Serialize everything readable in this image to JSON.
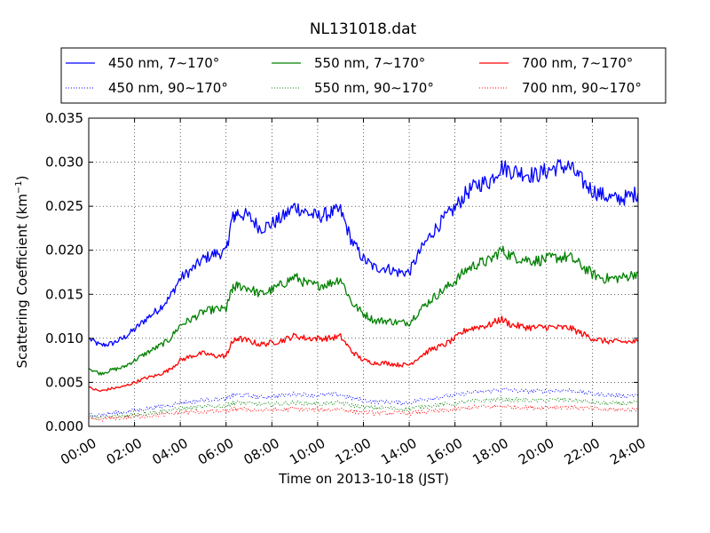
{
  "chart_data": {
    "type": "line",
    "title": "NL131018.dat",
    "xlabel": "Time on 2013-10-18 (JST)",
    "ylabel": "Scattering Coefficient (km",
    "ylabel_sup": "−1",
    "ylabel_end": ")",
    "xlim_hours": [
      0,
      24
    ],
    "ylim": [
      0,
      0.035
    ],
    "x_ticks": [
      "00:00",
      "02:00",
      "04:00",
      "06:00",
      "08:00",
      "10:00",
      "12:00",
      "14:00",
      "16:00",
      "18:00",
      "20:00",
      "22:00",
      "24:00"
    ],
    "y_ticks": [
      "0.000",
      "0.005",
      "0.010",
      "0.015",
      "0.020",
      "0.025",
      "0.030",
      "0.035"
    ],
    "grid": true,
    "legend_position": "top",
    "x_hours": [
      0,
      0.5,
      1,
      1.5,
      2,
      2.5,
      3,
      3.5,
      4,
      4.5,
      5,
      5.5,
      6,
      6.25,
      6.5,
      7,
      7.5,
      8,
      8.5,
      9,
      9.5,
      10,
      10.5,
      11,
      11.5,
      12,
      12.5,
      13,
      13.5,
      14,
      14.5,
      15,
      15.5,
      16,
      16.5,
      17,
      17.5,
      18,
      18.5,
      19,
      19.5,
      20,
      20.5,
      21,
      21.5,
      22,
      22.5,
      23,
      23.5,
      24
    ],
    "series": [
      {
        "name": "450 nm, 7∼170°",
        "color": "#0000ff",
        "style": "solid",
        "values": [
          0.01,
          0.0092,
          0.0094,
          0.01,
          0.011,
          0.0122,
          0.0132,
          0.0145,
          0.0168,
          0.0178,
          0.019,
          0.0196,
          0.0198,
          0.0235,
          0.0243,
          0.0238,
          0.0225,
          0.023,
          0.0238,
          0.025,
          0.0243,
          0.0238,
          0.0242,
          0.0245,
          0.021,
          0.019,
          0.018,
          0.018,
          0.0175,
          0.0175,
          0.02,
          0.022,
          0.0235,
          0.0248,
          0.0265,
          0.0275,
          0.0278,
          0.0295,
          0.029,
          0.0288,
          0.0285,
          0.029,
          0.0295,
          0.0295,
          0.028,
          0.0268,
          0.0262,
          0.0258,
          0.026,
          0.0265
        ]
      },
      {
        "name": "550 nm, 7∼170°",
        "color": "#008000",
        "style": "solid",
        "values": [
          0.0066,
          0.006,
          0.0064,
          0.0067,
          0.0075,
          0.0083,
          0.009,
          0.0098,
          0.0115,
          0.0122,
          0.013,
          0.0133,
          0.0133,
          0.0155,
          0.016,
          0.0157,
          0.015,
          0.0155,
          0.0162,
          0.017,
          0.0162,
          0.016,
          0.0162,
          0.0168,
          0.014,
          0.0128,
          0.012,
          0.012,
          0.0118,
          0.0118,
          0.0133,
          0.0145,
          0.0155,
          0.0165,
          0.0178,
          0.0185,
          0.0188,
          0.02,
          0.0193,
          0.019,
          0.0188,
          0.019,
          0.0192,
          0.0192,
          0.0183,
          0.0173,
          0.0168,
          0.0168,
          0.017,
          0.0175
        ]
      },
      {
        "name": "700 nm, 7∼170°",
        "color": "#ff0000",
        "style": "solid",
        "values": [
          0.0044,
          0.004,
          0.0043,
          0.0045,
          0.005,
          0.0055,
          0.0058,
          0.0064,
          0.0075,
          0.008,
          0.0083,
          0.008,
          0.008,
          0.0095,
          0.01,
          0.0097,
          0.0093,
          0.0095,
          0.0098,
          0.0103,
          0.01,
          0.01,
          0.01,
          0.0102,
          0.0085,
          0.0075,
          0.0072,
          0.0072,
          0.007,
          0.007,
          0.008,
          0.0088,
          0.0092,
          0.01,
          0.011,
          0.0113,
          0.0115,
          0.0122,
          0.0115,
          0.0113,
          0.0112,
          0.0113,
          0.0112,
          0.0112,
          0.0106,
          0.01,
          0.0097,
          0.0096,
          0.0096,
          0.0096
        ]
      },
      {
        "name": "450 nm, 90∼170°",
        "color": "#0000ff",
        "style": "dotted",
        "values": [
          0.0014,
          0.0013,
          0.0015,
          0.0016,
          0.0018,
          0.002,
          0.0022,
          0.0024,
          0.0027,
          0.0028,
          0.003,
          0.0031,
          0.0031,
          0.0035,
          0.0036,
          0.0035,
          0.0033,
          0.0034,
          0.0035,
          0.0037,
          0.0036,
          0.0035,
          0.0036,
          0.0036,
          0.0032,
          0.003,
          0.0028,
          0.0028,
          0.0027,
          0.0027,
          0.003,
          0.0032,
          0.0034,
          0.0035,
          0.0038,
          0.0039,
          0.004,
          0.0042,
          0.0041,
          0.004,
          0.004,
          0.004,
          0.0041,
          0.0041,
          0.0039,
          0.0037,
          0.0036,
          0.0035,
          0.0035,
          0.0036
        ]
      },
      {
        "name": "550 nm, 90∼170°",
        "color": "#008000",
        "style": "dotted",
        "values": [
          0.0011,
          0.001,
          0.0011,
          0.0012,
          0.0014,
          0.0015,
          0.0017,
          0.0018,
          0.002,
          0.0021,
          0.0022,
          0.0023,
          0.0023,
          0.0026,
          0.0027,
          0.0026,
          0.0025,
          0.0025,
          0.0026,
          0.0027,
          0.0026,
          0.0026,
          0.0026,
          0.0027,
          0.0024,
          0.0022,
          0.0021,
          0.0021,
          0.002,
          0.002,
          0.0022,
          0.0024,
          0.0025,
          0.0026,
          0.0028,
          0.0029,
          0.003,
          0.0031,
          0.003,
          0.003,
          0.0029,
          0.003,
          0.003,
          0.003,
          0.0029,
          0.0027,
          0.0026,
          0.0026,
          0.0026,
          0.0027
        ]
      },
      {
        "name": "700 nm, 90∼170°",
        "color": "#ff0000",
        "style": "dotted",
        "values": [
          0.0009,
          0.0008,
          0.0009,
          0.001,
          0.0011,
          0.0012,
          0.0013,
          0.0014,
          0.0016,
          0.0016,
          0.0017,
          0.0017,
          0.0017,
          0.0019,
          0.002,
          0.0019,
          0.0018,
          0.0019,
          0.0019,
          0.002,
          0.0019,
          0.0019,
          0.0019,
          0.002,
          0.0017,
          0.0016,
          0.0015,
          0.0015,
          0.0015,
          0.0015,
          0.0016,
          0.0017,
          0.0018,
          0.0019,
          0.0021,
          0.0022,
          0.0022,
          0.0023,
          0.0022,
          0.0022,
          0.0021,
          0.0022,
          0.0022,
          0.0022,
          0.0021,
          0.002,
          0.0019,
          0.0019,
          0.0019,
          0.0019
        ]
      }
    ]
  }
}
